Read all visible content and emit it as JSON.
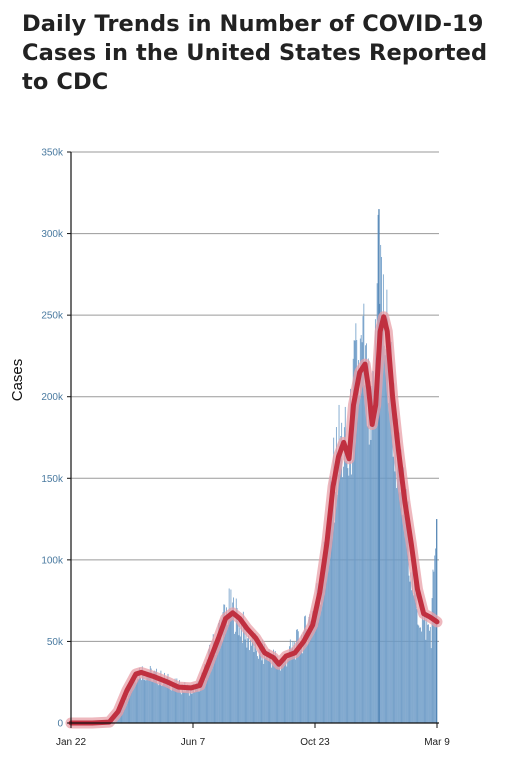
{
  "chart_data": {
    "type": "bar",
    "title": "Daily Trends in Number of COVID-19 Cases in the United States Reported to CDC",
    "ylabel": "Cases",
    "xlabel": "",
    "ylim": [
      0,
      350000
    ],
    "y_ticks": [
      "0",
      "50k",
      "100k",
      "150k",
      "200k",
      "250k",
      "300k",
      "350k"
    ],
    "x_ticks": [
      "Jan 22",
      "Jun 7",
      "Oct 23",
      "Mar 9"
    ],
    "x_range": [
      "2020-01-22",
      "2021-03-09"
    ],
    "grid": true,
    "colors": {
      "bars": "#6b9ac6",
      "bar_edge": "#4a7fb0",
      "average": "#c03040",
      "average_halo": "#e8a0a8",
      "grid": "#9a9a9a"
    },
    "series": [
      {
        "type": "bar",
        "sampled_daily_values": [
          [
            "2020-01-22",
            0
          ],
          [
            "2020-02-15",
            0
          ],
          [
            "2020-03-10",
            1000
          ],
          [
            "2020-03-20",
            12000
          ],
          [
            "2020-03-27",
            22000
          ],
          [
            "2020-04-03",
            31000
          ],
          [
            "2020-04-10",
            33000
          ],
          [
            "2020-04-24",
            30000
          ],
          [
            "2020-05-08",
            27000
          ],
          [
            "2020-05-22",
            23000
          ],
          [
            "2020-06-05",
            21000
          ],
          [
            "2020-06-15",
            24000
          ],
          [
            "2020-06-26",
            42000
          ],
          [
            "2020-07-06",
            58000
          ],
          [
            "2020-07-17",
            72000
          ],
          [
            "2020-07-24",
            70000
          ],
          [
            "2020-08-07",
            55000
          ],
          [
            "2020-08-21",
            45000
          ],
          [
            "2020-09-04",
            42000
          ],
          [
            "2020-09-14",
            37000
          ],
          [
            "2020-09-25",
            45000
          ],
          [
            "2020-10-09",
            54000
          ],
          [
            "2020-10-23",
            74000
          ],
          [
            "2020-11-01",
            95000
          ],
          [
            "2020-11-10",
            140000
          ],
          [
            "2020-11-20",
            178000
          ],
          [
            "2020-11-30",
            165000
          ],
          [
            "2020-12-07",
            215000
          ],
          [
            "2020-12-17",
            230000
          ],
          [
            "2020-12-25",
            175000
          ],
          [
            "2020-12-31",
            235000
          ],
          [
            "2021-01-02",
            315000
          ],
          [
            "2021-01-08",
            255000
          ],
          [
            "2021-01-15",
            225000
          ],
          [
            "2021-01-25",
            160000
          ],
          [
            "2021-02-04",
            125000
          ],
          [
            "2021-02-14",
            72000
          ],
          [
            "2021-02-24",
            62000
          ],
          [
            "2021-03-03",
            58000
          ],
          [
            "2021-03-08",
            125000
          ],
          [
            "2021-03-09",
            55000
          ]
        ]
      },
      {
        "type": "line",
        "sampled_average_values": [
          [
            "2020-01-22",
            0
          ],
          [
            "2020-02-15",
            0
          ],
          [
            "2020-03-05",
            500
          ],
          [
            "2020-03-15",
            7000
          ],
          [
            "2020-03-25",
            20000
          ],
          [
            "2020-04-04",
            30000
          ],
          [
            "2020-04-10",
            31000
          ],
          [
            "2020-04-24",
            28500
          ],
          [
            "2020-05-08",
            25500
          ],
          [
            "2020-05-22",
            22000
          ],
          [
            "2020-06-05",
            21500
          ],
          [
            "2020-06-15",
            23000
          ],
          [
            "2020-06-26",
            38000
          ],
          [
            "2020-07-06",
            52000
          ],
          [
            "2020-07-14",
            64000
          ],
          [
            "2020-07-22",
            67500
          ],
          [
            "2020-07-30",
            64000
          ],
          [
            "2020-08-07",
            58000
          ],
          [
            "2020-08-17",
            52000
          ],
          [
            "2020-08-27",
            43000
          ],
          [
            "2020-09-06",
            40000
          ],
          [
            "2020-09-12",
            36000
          ],
          [
            "2020-09-20",
            41000
          ],
          [
            "2020-09-30",
            43000
          ],
          [
            "2020-10-10",
            50000
          ],
          [
            "2020-10-20",
            60000
          ],
          [
            "2020-10-28",
            80000
          ],
          [
            "2020-11-05",
            110000
          ],
          [
            "2020-11-12",
            145000
          ],
          [
            "2020-11-18",
            163000
          ],
          [
            "2020-11-24",
            172000
          ],
          [
            "2020-11-30",
            162000
          ],
          [
            "2020-12-05",
            195000
          ],
          [
            "2020-12-12",
            215000
          ],
          [
            "2020-12-18",
            220000
          ],
          [
            "2020-12-22",
            205000
          ],
          [
            "2020-12-26",
            183000
          ],
          [
            "2020-12-30",
            195000
          ],
          [
            "2021-01-04",
            240000
          ],
          [
            "2021-01-08",
            249000
          ],
          [
            "2021-01-12",
            240000
          ],
          [
            "2021-01-18",
            200000
          ],
          [
            "2021-01-24",
            170000
          ],
          [
            "2021-02-01",
            135000
          ],
          [
            "2021-02-08",
            110000
          ],
          [
            "2021-02-15",
            82000
          ],
          [
            "2021-02-22",
            67000
          ],
          [
            "2021-03-01",
            65000
          ],
          [
            "2021-03-09",
            62000
          ]
        ]
      }
    ]
  }
}
